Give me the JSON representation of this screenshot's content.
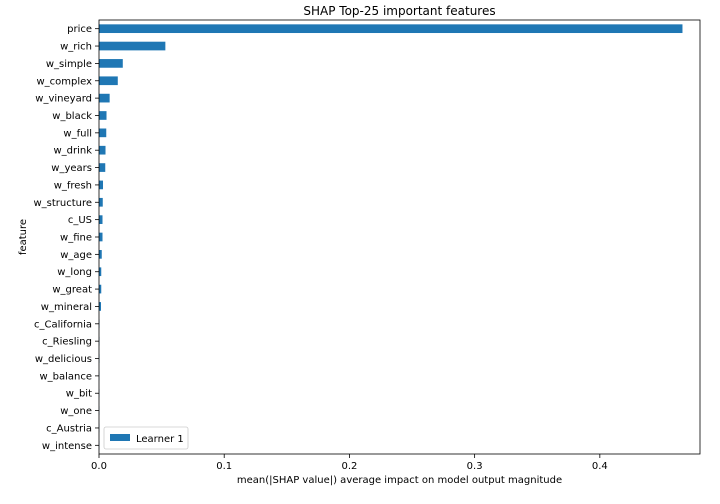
{
  "chart_data": {
    "type": "bar",
    "orientation": "horizontal",
    "title": "SHAP Top-25 important features",
    "xlabel": "mean(|SHAP value|) average impact on model output magnitude",
    "ylabel": "feature",
    "xlim": [
      0,
      0.48
    ],
    "xticks": [
      0,
      0.1,
      0.2,
      0.3,
      0.4
    ],
    "xtick_labels": [
      "0.0",
      "0.1",
      "0.2",
      "0.3",
      "0.4"
    ],
    "grid": false,
    "legend_position": "lower-left",
    "bar_color": "#1f77b4",
    "categories": [
      "price",
      "w_rich",
      "w_simple",
      "w_complex",
      "w_vineyard",
      "w_black",
      "w_full",
      "w_drink",
      "w_years",
      "w_fresh",
      "w_structure",
      "c_US",
      "w_fine",
      "w_age",
      "w_long",
      "w_great",
      "w_mineral",
      "c_California",
      "c_Riesling",
      "w_delicious",
      "w_balance",
      "w_bit",
      "w_one",
      "c_Austria",
      "w_intense"
    ],
    "series": [
      {
        "name": "Learner 1",
        "values": [
          0.466,
          0.053,
          0.019,
          0.015,
          0.0085,
          0.006,
          0.0058,
          0.0052,
          0.005,
          0.0032,
          0.003,
          0.0028,
          0.0028,
          0.0022,
          0.0018,
          0.0018,
          0.0016,
          0.0003,
          0.0003,
          0.0003,
          0.0002,
          0.0002,
          0.0002,
          0.0002,
          0.0002
        ]
      }
    ]
  }
}
